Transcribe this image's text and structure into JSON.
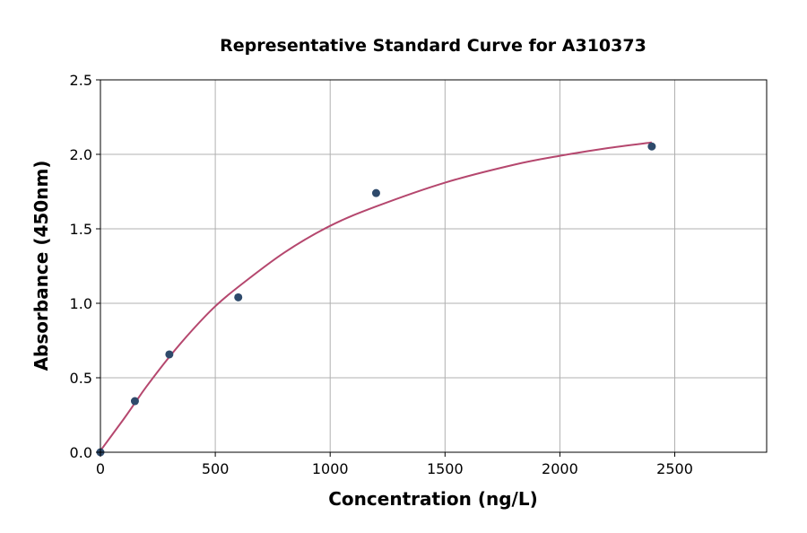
{
  "chart_data": {
    "type": "scatter",
    "title": "Representative Standard Curve for A310373",
    "xlabel": "Concentration (ng/L)",
    "ylabel": "Absorbance (450nm)",
    "xlim": [
      0,
      2900
    ],
    "ylim": [
      0,
      2.5
    ],
    "xticks": [
      0,
      500,
      1000,
      1500,
      2000,
      2500
    ],
    "yticks": [
      0.0,
      0.5,
      1.0,
      1.5,
      2.0,
      2.5
    ],
    "xtick_labels": [
      "0",
      "500",
      "1000",
      "1500",
      "2000",
      "2500"
    ],
    "ytick_labels": [
      "0.0",
      "0.5",
      "1.0",
      "1.5",
      "2.0",
      "2.5"
    ],
    "grid": true,
    "points": {
      "x": [
        0,
        150,
        300,
        600,
        1200,
        2400
      ],
      "y": [
        0.0,
        0.343,
        0.657,
        1.04,
        1.74,
        2.053
      ],
      "color": "#2e4a6b"
    },
    "fit_curve": {
      "x": [
        0,
        100,
        150,
        200,
        300,
        400,
        500,
        600,
        800,
        1000,
        1200,
        1500,
        1800,
        2000,
        2200,
        2400
      ],
      "y": [
        0.01,
        0.22,
        0.33,
        0.44,
        0.64,
        0.82,
        0.98,
        1.11,
        1.34,
        1.52,
        1.65,
        1.81,
        1.93,
        1.99,
        2.04,
        2.08
      ],
      "color": "#b5476e"
    }
  }
}
